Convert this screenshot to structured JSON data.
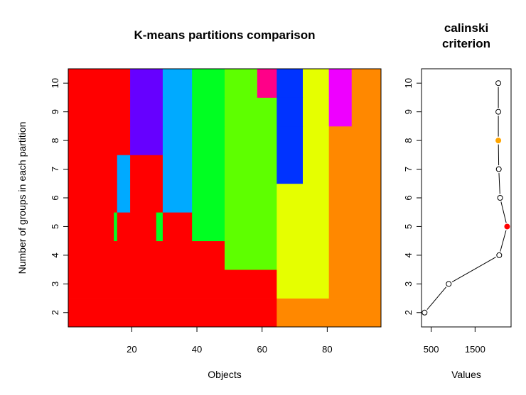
{
  "chart_data": [
    {
      "type": "heatmap",
      "title": "K-means partitions comparison",
      "xlabel": "Objects",
      "ylabel": "Number of groups in each partition",
      "xlim": [
        0.5,
        96.5
      ],
      "ylim": [
        1.5,
        10.5
      ],
      "xticks": [
        "20",
        "40",
        "60",
        "80"
      ],
      "yticks": [
        "2",
        "3",
        "4",
        "5",
        "6",
        "7",
        "8",
        "9",
        "10"
      ],
      "palette": {
        "red": "#FF0000",
        "orange": "#FF8800",
        "yellow": "#E5FF00",
        "lime": "#5EFF00",
        "green": "#00FF22",
        "cyan": "#00AAFF",
        "blue": "#0033FF",
        "violet": "#6600FF",
        "magenta": "#EE00FF",
        "pink": "#FF0088"
      },
      "cells": [
        {
          "k": 2,
          "from": 1,
          "to": 64,
          "color": "red"
        },
        {
          "k": 2,
          "from": 65,
          "to": 96,
          "color": "orange"
        },
        {
          "k": 3,
          "from": 1,
          "to": 64,
          "color": "red"
        },
        {
          "k": 3,
          "from": 65,
          "to": 80,
          "color": "yellow"
        },
        {
          "k": 3,
          "from": 81,
          "to": 96,
          "color": "orange"
        },
        {
          "k": 4,
          "from": 1,
          "to": 48,
          "color": "red"
        },
        {
          "k": 4,
          "from": 49,
          "to": 64,
          "color": "lime"
        },
        {
          "k": 4,
          "from": 65,
          "to": 80,
          "color": "yellow"
        },
        {
          "k": 4,
          "from": 81,
          "to": 96,
          "color": "orange"
        },
        {
          "k": 5,
          "from": 1,
          "to": 14,
          "color": "red"
        },
        {
          "k": 5,
          "from": 15,
          "to": 15,
          "color": "green"
        },
        {
          "k": 5,
          "from": 16,
          "to": 27,
          "color": "red"
        },
        {
          "k": 5,
          "from": 28,
          "to": 29,
          "color": "green"
        },
        {
          "k": 5,
          "from": 30,
          "to": 38,
          "color": "red"
        },
        {
          "k": 5,
          "from": 39,
          "to": 48,
          "color": "green"
        },
        {
          "k": 5,
          "from": 49,
          "to": 64,
          "color": "lime"
        },
        {
          "k": 5,
          "from": 65,
          "to": 80,
          "color": "yellow"
        },
        {
          "k": 5,
          "from": 81,
          "to": 96,
          "color": "orange"
        },
        {
          "k": 6,
          "from": 1,
          "to": 15,
          "color": "red"
        },
        {
          "k": 6,
          "from": 16,
          "to": 19,
          "color": "cyan"
        },
        {
          "k": 6,
          "from": 20,
          "to": 29,
          "color": "red"
        },
        {
          "k": 6,
          "from": 30,
          "to": 38,
          "color": "cyan"
        },
        {
          "k": 6,
          "from": 39,
          "to": 48,
          "color": "green"
        },
        {
          "k": 6,
          "from": 49,
          "to": 64,
          "color": "lime"
        },
        {
          "k": 6,
          "from": 65,
          "to": 80,
          "color": "yellow"
        },
        {
          "k": 6,
          "from": 81,
          "to": 96,
          "color": "orange"
        },
        {
          "k": 7,
          "from": 1,
          "to": 15,
          "color": "red"
        },
        {
          "k": 7,
          "from": 16,
          "to": 19,
          "color": "cyan"
        },
        {
          "k": 7,
          "from": 20,
          "to": 29,
          "color": "red"
        },
        {
          "k": 7,
          "from": 30,
          "to": 38,
          "color": "cyan"
        },
        {
          "k": 7,
          "from": 39,
          "to": 48,
          "color": "green"
        },
        {
          "k": 7,
          "from": 49,
          "to": 64,
          "color": "lime"
        },
        {
          "k": 7,
          "from": 65,
          "to": 72,
          "color": "blue"
        },
        {
          "k": 7,
          "from": 73,
          "to": 80,
          "color": "yellow"
        },
        {
          "k": 7,
          "from": 81,
          "to": 96,
          "color": "orange"
        },
        {
          "k": 8,
          "from": 1,
          "to": 19,
          "color": "red"
        },
        {
          "k": 8,
          "from": 20,
          "to": 29,
          "color": "violet"
        },
        {
          "k": 8,
          "from": 30,
          "to": 38,
          "color": "cyan"
        },
        {
          "k": 8,
          "from": 39,
          "to": 48,
          "color": "green"
        },
        {
          "k": 8,
          "from": 49,
          "to": 64,
          "color": "lime"
        },
        {
          "k": 8,
          "from": 65,
          "to": 72,
          "color": "blue"
        },
        {
          "k": 8,
          "from": 73,
          "to": 80,
          "color": "yellow"
        },
        {
          "k": 8,
          "from": 81,
          "to": 96,
          "color": "orange"
        },
        {
          "k": 9,
          "from": 1,
          "to": 19,
          "color": "red"
        },
        {
          "k": 9,
          "from": 20,
          "to": 29,
          "color": "violet"
        },
        {
          "k": 9,
          "from": 30,
          "to": 38,
          "color": "cyan"
        },
        {
          "k": 9,
          "from": 39,
          "to": 48,
          "color": "green"
        },
        {
          "k": 9,
          "from": 49,
          "to": 64,
          "color": "lime"
        },
        {
          "k": 9,
          "from": 65,
          "to": 72,
          "color": "blue"
        },
        {
          "k": 9,
          "from": 73,
          "to": 80,
          "color": "yellow"
        },
        {
          "k": 9,
          "from": 81,
          "to": 87,
          "color": "magenta"
        },
        {
          "k": 9,
          "from": 88,
          "to": 96,
          "color": "orange"
        },
        {
          "k": 10,
          "from": 1,
          "to": 19,
          "color": "red"
        },
        {
          "k": 10,
          "from": 20,
          "to": 29,
          "color": "violet"
        },
        {
          "k": 10,
          "from": 30,
          "to": 38,
          "color": "cyan"
        },
        {
          "k": 10,
          "from": 39,
          "to": 48,
          "color": "green"
        },
        {
          "k": 10,
          "from": 49,
          "to": 58,
          "color": "lime"
        },
        {
          "k": 10,
          "from": 59,
          "to": 64,
          "color": "pink"
        },
        {
          "k": 10,
          "from": 65,
          "to": 72,
          "color": "blue"
        },
        {
          "k": 10,
          "from": 73,
          "to": 80,
          "color": "yellow"
        },
        {
          "k": 10,
          "from": 81,
          "to": 87,
          "color": "magenta"
        },
        {
          "k": 10,
          "from": 88,
          "to": 96,
          "color": "orange"
        }
      ]
    },
    {
      "type": "line",
      "title_lines": [
        "calinski",
        "criterion"
      ],
      "xlabel": "Values",
      "xlim": [
        280,
        2320
      ],
      "ylim": [
        1.5,
        10.5
      ],
      "xticks": [
        {
          "label": "500",
          "value": 500
        },
        {
          "label": "1500",
          "value": 1500
        }
      ],
      "yticks": [
        "2",
        "3",
        "4",
        "5",
        "6",
        "7",
        "8",
        "9",
        "10"
      ],
      "x": [
        350,
        900,
        2050,
        2230,
        2070,
        2040,
        2030,
        2030,
        2030
      ],
      "y": [
        2,
        3,
        4,
        5,
        6,
        7,
        8,
        9,
        10
      ],
      "highlight": [
        {
          "y": 5,
          "color": "#FF0000"
        },
        {
          "y": 8,
          "color": "#FFA500"
        }
      ]
    }
  ]
}
